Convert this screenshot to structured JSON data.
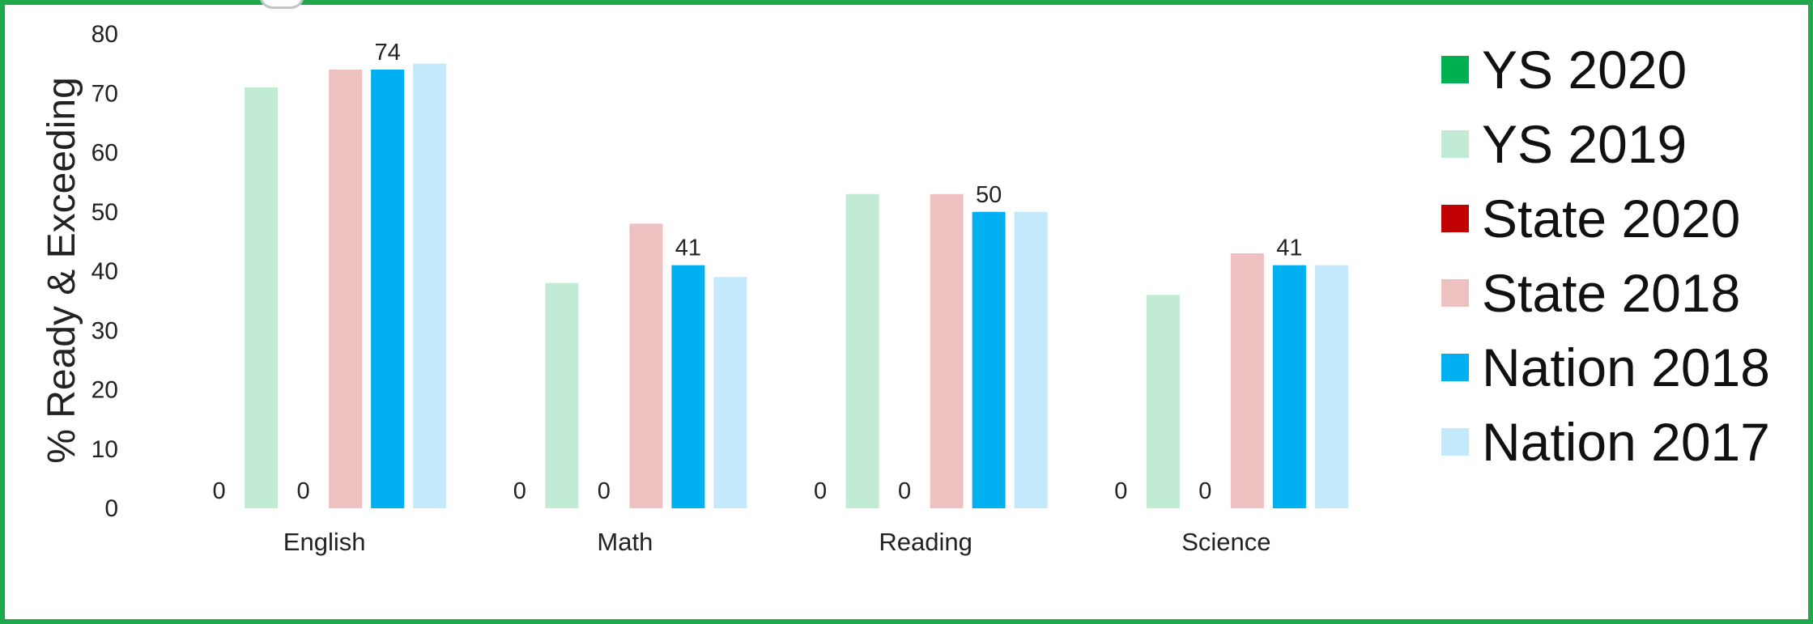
{
  "chart_data": {
    "type": "bar",
    "title": "",
    "xlabel": "",
    "ylabel": "% Ready & Exceeding",
    "ylim": [
      0,
      80
    ],
    "yticks": [
      0,
      10,
      20,
      30,
      40,
      50,
      60,
      70,
      80
    ],
    "grid": false,
    "legend_position": "right",
    "categories": [
      "English",
      "Math",
      "Reading",
      "Science"
    ],
    "series": [
      {
        "name": "YS 2020",
        "color": "#00b050",
        "values": [
          0,
          0,
          0,
          0
        ],
        "labels": [
          "0",
          "0",
          "0",
          "0"
        ]
      },
      {
        "name": "YS 2019",
        "color": "#c2ebd6",
        "values": [
          71,
          38,
          53,
          36
        ],
        "labels": [
          "",
          "",
          "",
          ""
        ]
      },
      {
        "name": "State 2020",
        "color": "#c00000",
        "values": [
          0,
          0,
          0,
          0
        ],
        "labels": [
          "0",
          "0",
          "0",
          "0"
        ]
      },
      {
        "name": "State 2018",
        "color": "#efc0c0",
        "values": [
          74,
          48,
          53,
          43
        ],
        "labels": [
          "",
          "",
          "",
          ""
        ]
      },
      {
        "name": "Nation 2018",
        "color": "#00b0f0",
        "values": [
          74,
          41,
          50,
          41
        ],
        "labels": [
          "74",
          "41",
          "50",
          "41"
        ]
      },
      {
        "name": "Nation 2017",
        "color": "#c3e9fa",
        "values": [
          75,
          39,
          50,
          41
        ],
        "labels": [
          "",
          "",
          "",
          ""
        ]
      }
    ]
  }
}
